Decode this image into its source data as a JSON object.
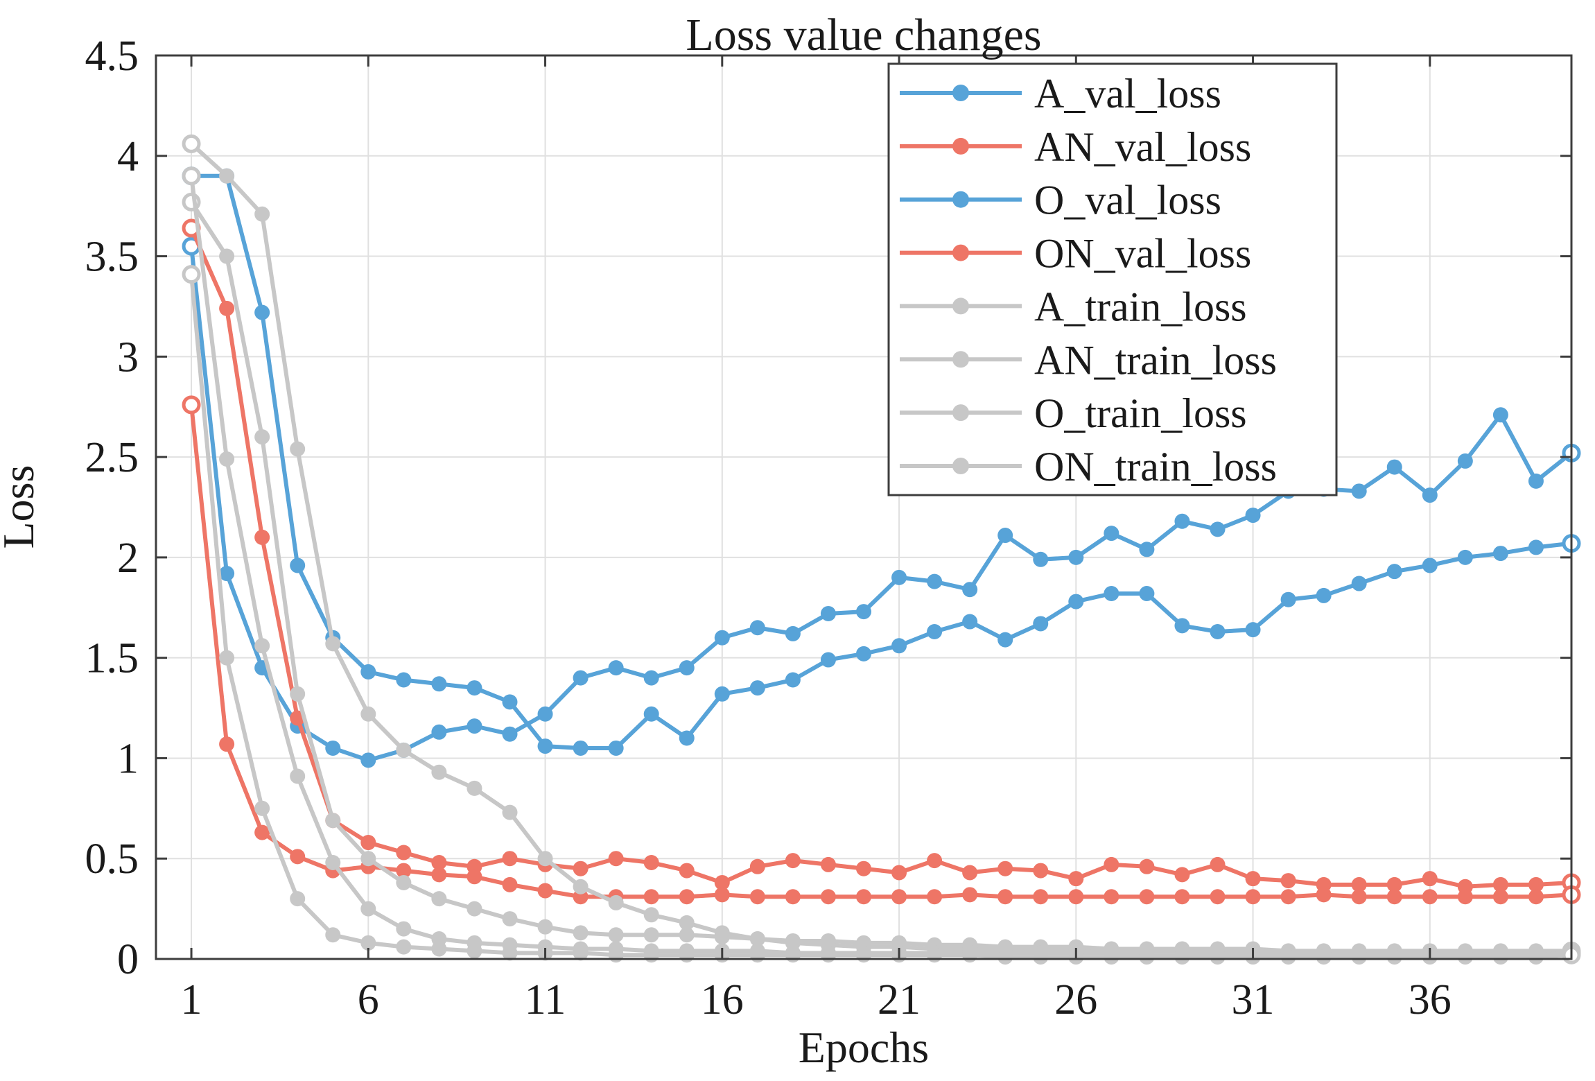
{
  "chart_data": {
    "type": "line",
    "title": "Loss value changes",
    "xlabel": "Epochs",
    "ylabel": "Loss",
    "xlim": [
      0,
      40
    ],
    "ylim": [
      0,
      4.5
    ],
    "x_ticks": [
      1,
      6,
      11,
      16,
      21,
      26,
      31,
      36
    ],
    "y_ticks": [
      0,
      0.5,
      1,
      1.5,
      2,
      2.5,
      3,
      3.5,
      4,
      4.5
    ],
    "y_tick_labels": [
      "0",
      "0.5",
      "1",
      "1.5",
      "2",
      "2.5",
      "3",
      "3.5",
      "4",
      "4.5"
    ],
    "x_tick_labels": [
      "1",
      "6",
      "11",
      "16",
      "21",
      "26",
      "31",
      "36"
    ],
    "grid": true,
    "legend_position": "top-right",
    "colors": {
      "val_blue": "#57a3d8",
      "val_red": "#ee7566",
      "train_gray": "#c7c7c7",
      "axis": "#3d3d3d",
      "grid": "#e0e0e0",
      "text": "#1a1a1a",
      "background": "#ffffff"
    },
    "epochs": [
      1,
      2,
      3,
      4,
      5,
      6,
      7,
      8,
      9,
      10,
      11,
      12,
      13,
      14,
      15,
      16,
      17,
      18,
      19,
      20,
      21,
      22,
      23,
      24,
      25,
      26,
      27,
      28,
      29,
      30,
      31,
      32,
      33,
      34,
      35,
      36,
      37,
      38,
      39,
      40
    ],
    "series": [
      {
        "name": "A_val_loss",
        "color_key": "val_blue",
        "values": [
          3.55,
          1.92,
          1.45,
          1.16,
          1.05,
          0.99,
          1.04,
          1.13,
          1.16,
          1.12,
          1.22,
          1.4,
          1.45,
          1.4,
          1.45,
          1.6,
          1.65,
          1.62,
          1.72,
          1.73,
          1.9,
          1.88,
          1.84,
          2.11,
          1.99,
          2.0,
          2.12,
          2.04,
          2.18,
          2.14,
          2.21,
          2.33,
          2.34,
          2.33,
          2.45,
          2.31,
          2.48,
          2.71,
          2.38,
          2.52
        ]
      },
      {
        "name": "AN_val_loss",
        "color_key": "val_red",
        "values": [
          3.64,
          3.24,
          2.1,
          1.2,
          0.69,
          0.58,
          0.53,
          0.48,
          0.46,
          0.5,
          0.47,
          0.45,
          0.5,
          0.48,
          0.44,
          0.38,
          0.46,
          0.49,
          0.47,
          0.45,
          0.43,
          0.49,
          0.43,
          0.45,
          0.44,
          0.4,
          0.47,
          0.46,
          0.42,
          0.47,
          0.4,
          0.39,
          0.37,
          0.37,
          0.37,
          0.4,
          0.36,
          0.37,
          0.37,
          0.38
        ]
      },
      {
        "name": "O_val_loss",
        "color_key": "val_blue",
        "values": [
          3.9,
          3.9,
          3.22,
          1.96,
          1.6,
          1.43,
          1.39,
          1.37,
          1.35,
          1.28,
          1.06,
          1.05,
          1.05,
          1.22,
          1.1,
          1.32,
          1.35,
          1.39,
          1.49,
          1.52,
          1.56,
          1.63,
          1.68,
          1.59,
          1.67,
          1.78,
          1.82,
          1.82,
          1.66,
          1.63,
          1.64,
          1.79,
          1.81,
          1.87,
          1.93,
          1.96,
          2.0,
          2.02,
          2.05,
          2.07
        ]
      },
      {
        "name": "ON_val_loss",
        "color_key": "val_red",
        "values": [
          2.76,
          1.07,
          0.63,
          0.51,
          0.44,
          0.46,
          0.44,
          0.42,
          0.41,
          0.37,
          0.34,
          0.31,
          0.31,
          0.31,
          0.31,
          0.32,
          0.31,
          0.31,
          0.31,
          0.31,
          0.31,
          0.31,
          0.32,
          0.31,
          0.31,
          0.31,
          0.31,
          0.31,
          0.31,
          0.31,
          0.31,
          0.31,
          0.32,
          0.31,
          0.31,
          0.31,
          0.31,
          0.31,
          0.31,
          0.32
        ]
      },
      {
        "name": "A_train_loss",
        "color_key": "train_gray",
        "values": [
          4.06,
          3.9,
          3.71,
          2.54,
          1.57,
          1.22,
          1.04,
          0.93,
          0.85,
          0.73,
          0.5,
          0.36,
          0.28,
          0.22,
          0.18,
          0.13,
          0.1,
          0.08,
          0.07,
          0.06,
          0.06,
          0.05,
          0.05,
          0.05,
          0.04,
          0.04,
          0.04,
          0.04,
          0.04,
          0.03,
          0.03,
          0.03,
          0.03,
          0.03,
          0.03,
          0.03,
          0.03,
          0.03,
          0.03,
          0.03
        ]
      },
      {
        "name": "AN_train_loss",
        "color_key": "train_gray",
        "values": [
          3.77,
          3.5,
          2.6,
          1.32,
          0.69,
          0.5,
          0.38,
          0.3,
          0.25,
          0.2,
          0.16,
          0.13,
          0.12,
          0.12,
          0.12,
          0.11,
          0.1,
          0.09,
          0.09,
          0.08,
          0.08,
          0.07,
          0.07,
          0.06,
          0.06,
          0.06,
          0.05,
          0.05,
          0.05,
          0.05,
          0.05,
          0.04,
          0.04,
          0.04,
          0.04,
          0.04,
          0.04,
          0.04,
          0.04,
          0.04
        ]
      },
      {
        "name": "O_train_loss",
        "color_key": "train_gray",
        "values": [
          3.9,
          2.49,
          1.56,
          0.91,
          0.48,
          0.25,
          0.15,
          0.1,
          0.08,
          0.07,
          0.06,
          0.05,
          0.05,
          0.04,
          0.04,
          0.04,
          0.04,
          0.03,
          0.03,
          0.03,
          0.03,
          0.03,
          0.03,
          0.03,
          0.03,
          0.03,
          0.03,
          0.02,
          0.02,
          0.02,
          0.02,
          0.02,
          0.02,
          0.02,
          0.02,
          0.02,
          0.02,
          0.02,
          0.02,
          0.03
        ]
      },
      {
        "name": "ON_train_loss",
        "color_key": "train_gray",
        "values": [
          3.41,
          1.5,
          0.75,
          0.3,
          0.12,
          0.08,
          0.06,
          0.05,
          0.04,
          0.03,
          0.03,
          0.03,
          0.02,
          0.02,
          0.02,
          0.02,
          0.02,
          0.02,
          0.02,
          0.02,
          0.02,
          0.02,
          0.02,
          0.01,
          0.01,
          0.01,
          0.01,
          0.01,
          0.01,
          0.01,
          0.01,
          0.01,
          0.01,
          0.01,
          0.01,
          0.01,
          0.01,
          0.01,
          0.01,
          0.02
        ]
      }
    ]
  }
}
